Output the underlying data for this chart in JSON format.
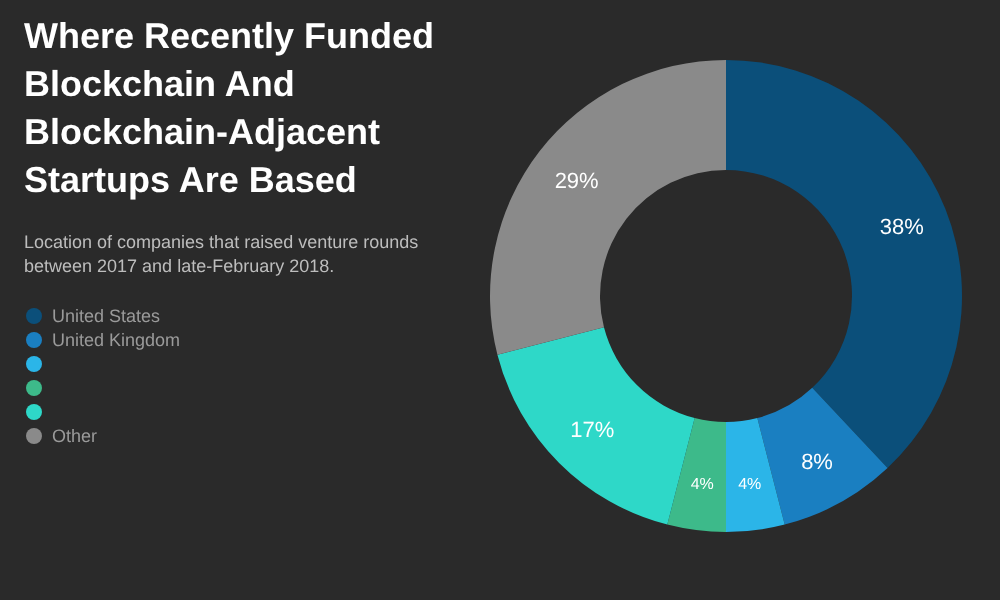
{
  "chart_data": {
    "type": "donut",
    "title": "Where Recently Funded Blockchain And Blockchain-Adjacent Startups Are Based",
    "subtitle": "Location of companies that raised venture rounds between 2017 and late-February 2018.",
    "categories": [
      "United States",
      "United Kingdom",
      null,
      null,
      null,
      "Other"
    ],
    "values": [
      38,
      8,
      4,
      4,
      17,
      29
    ],
    "colors": [
      "#0b4f7a",
      "#1a7fc1",
      "#2bb5e8",
      "#3dba8a",
      "#2ed8c8",
      "#8a8a8a"
    ],
    "value_labels": [
      "38%",
      "8%",
      "4%",
      "4%",
      "17%",
      "29%"
    ],
    "legend": "left"
  }
}
